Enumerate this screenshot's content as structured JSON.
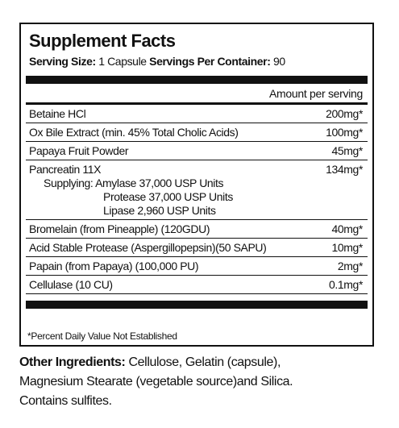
{
  "header": {
    "title": "Supplement Facts",
    "serving_size_label": "Serving Size:",
    "serving_size_value": "1 Capsule",
    "servings_per_container_label": "Servings Per Container:",
    "servings_per_container_value": "90"
  },
  "amount_header": "Amount per serving",
  "rows": [
    [
      "Betaine HCl",
      "200mg*"
    ],
    [
      "Ox Bile Extract (min. 45% Total Cholic Acids)",
      "100mg*"
    ],
    [
      "Papaya Fruit Powder",
      "45mg*"
    ],
    [
      "Pancreatin 11X",
      "134mg*"
    ],
    [
      "Bromelain (from Pineapple) (120GDU)",
      "40mg*"
    ],
    [
      "Acid Stable Protease (Aspergillopepsin)(50 SAPU)",
      "10mg*"
    ],
    [
      "Papain (from Papaya) (100,000 PU)",
      "2mg*"
    ],
    [
      "Cellulase (10 CU)",
      "0.1mg*"
    ]
  ],
  "supplying": {
    "label": "Supplying:",
    "items": [
      "Amylase 37,000 USP Units",
      "Protease 37,000 USP Units",
      "Lipase 2,960 USP Units"
    ]
  },
  "footnote": "*Percent Daily Value Not Established",
  "other_ingredients": {
    "label": "Other Ingredients:",
    "lines": [
      "Cellulose, Gelatin (capsule),",
      "Magnesium Stearate (vegetable source)and Silica.",
      "Contains sulfites."
    ]
  }
}
